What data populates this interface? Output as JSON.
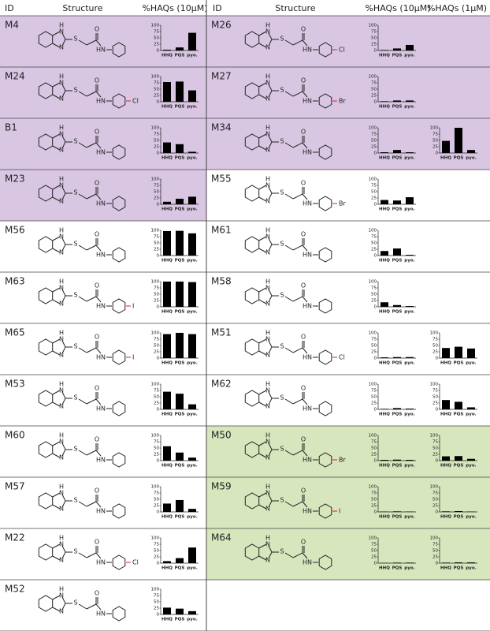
{
  "header": {
    "id": "ID",
    "structure": "Structure",
    "col_10": "%HAQs (10µM)",
    "col_1": "%HAQs (1µM)"
  },
  "atoms": {
    "nh": "H",
    "n": "N",
    "s": "S",
    "o": "O",
    "amide": "HN"
  },
  "categories": [
    "HHQ",
    "PQS",
    "pyo."
  ],
  "ylim": [
    0,
    100
  ],
  "yticks": [
    0,
    25,
    50,
    75,
    100
  ],
  "bar_color": "#000000",
  "highlight_colors": {
    "purple": "#d9c6e3",
    "green": "#d7e6bd"
  },
  "left": [
    {
      "id": "M4",
      "highlight": "purple",
      "values_10": [
        3,
        12,
        70
      ]
    },
    {
      "id": "M24",
      "highlight": "purple",
      "substituent": "Cl",
      "values_10": [
        78,
        80,
        45
      ]
    },
    {
      "id": "B1",
      "highlight": "purple",
      "values_10": [
        42,
        35,
        5
      ]
    },
    {
      "id": "M23",
      "highlight": "purple",
      "values_10": [
        10,
        22,
        30
      ]
    },
    {
      "id": "M56",
      "values_10": [
        97,
        98,
        88
      ]
    },
    {
      "id": "M63",
      "substituent": "I",
      "values_10": [
        100,
        100,
        98
      ]
    },
    {
      "id": "M65",
      "substituent": "I",
      "values_10": [
        95,
        100,
        95
      ]
    },
    {
      "id": "M53",
      "values_10": [
        70,
        62,
        20
      ]
    },
    {
      "id": "M60",
      "values_10": [
        57,
        32,
        12
      ]
    },
    {
      "id": "M57",
      "values_10": [
        33,
        47,
        12
      ]
    },
    {
      "id": "M22",
      "substituent": "Cl",
      "values_10": [
        8,
        20,
        62
      ]
    },
    {
      "id": "M52",
      "values_10": [
        27,
        23,
        13
      ]
    }
  ],
  "right": [
    {
      "id": "M26",
      "highlight": "purple",
      "substituent": "Cl",
      "values_10": [
        2,
        8,
        22
      ]
    },
    {
      "id": "M27",
      "highlight": "purple",
      "substituent": "Br",
      "values_10": [
        2,
        5,
        5
      ]
    },
    {
      "id": "M34",
      "highlight": "purple",
      "values_10": [
        3,
        12,
        3
      ],
      "values_1": [
        48,
        100,
        12
      ]
    },
    {
      "id": "M55",
      "substituent": "Br",
      "values_10": [
        17,
        15,
        28
      ]
    },
    {
      "id": "M61",
      "values_10": [
        18,
        28,
        3
      ]
    },
    {
      "id": "M58",
      "values_10": [
        18,
        7,
        3
      ]
    },
    {
      "id": "M51",
      "substituent": "Cl",
      "values_10": [
        3,
        4,
        4
      ],
      "values_1": [
        40,
        45,
        38
      ]
    },
    {
      "id": "M62",
      "values_10": [
        2,
        5,
        3
      ],
      "values_1": [
        37,
        30,
        8
      ]
    },
    {
      "id": "M50",
      "highlight": "green",
      "substituent": "Br",
      "values_10": [
        3,
        4,
        3
      ],
      "values_1": [
        17,
        18,
        7
      ]
    },
    {
      "id": "M59",
      "highlight": "green",
      "substituent": "I",
      "values_10": [
        1,
        2,
        1
      ],
      "values_1": [
        2,
        3,
        1
      ]
    },
    {
      "id": "M64",
      "highlight": "green",
      "values_10": [
        1,
        2,
        2
      ],
      "values_1": [
        2,
        3,
        3
      ]
    }
  ]
}
